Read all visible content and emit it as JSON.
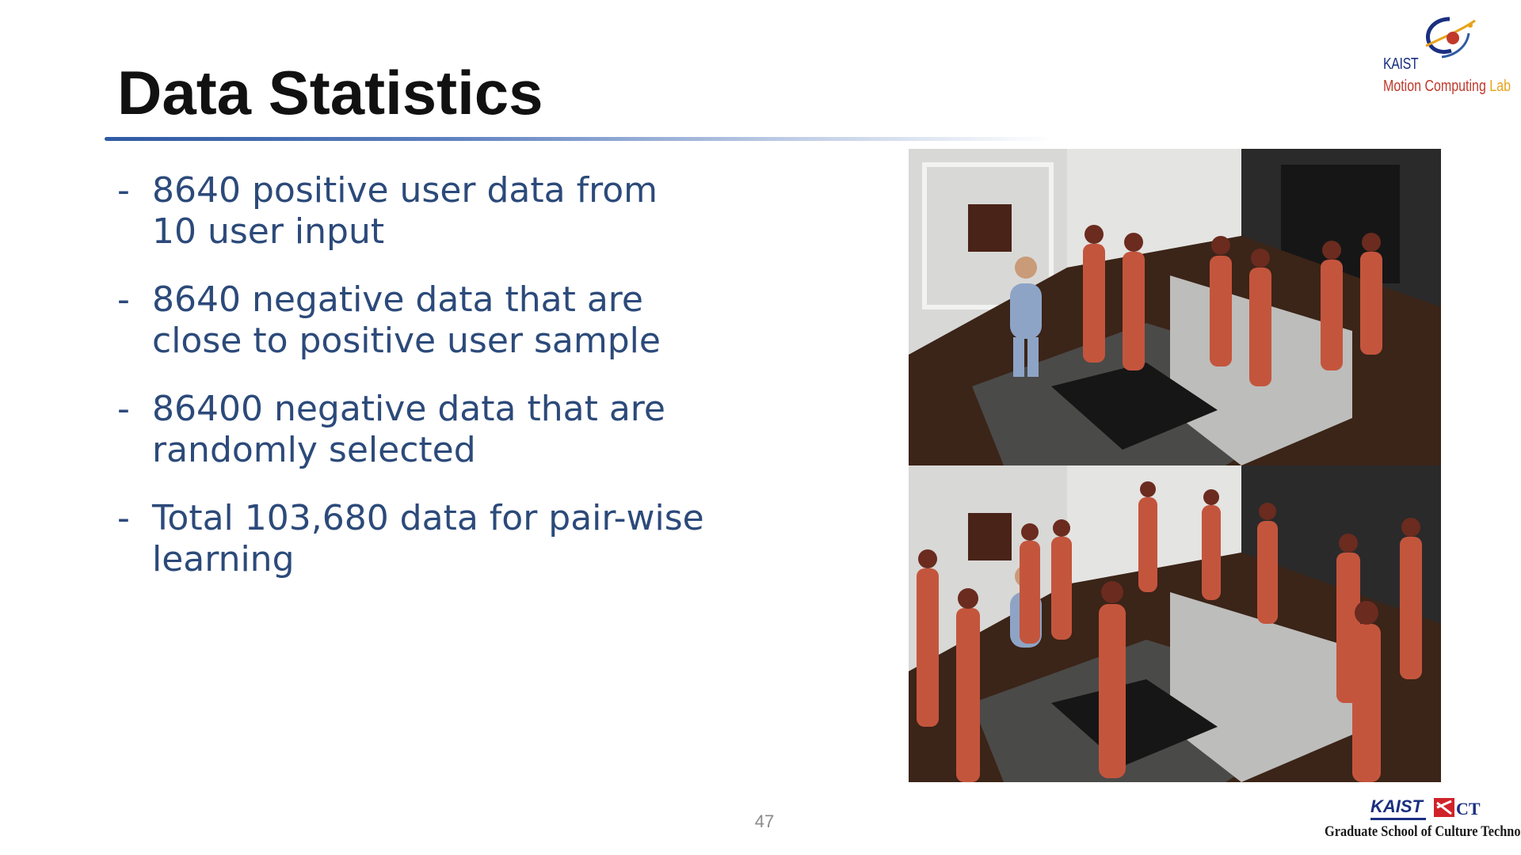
{
  "slide": {
    "title": "Data Statistics",
    "page_number": "47"
  },
  "bullets": [
    {
      "marker": "-",
      "lines": [
        "8640 positive user data from",
        "10 user input"
      ]
    },
    {
      "marker": "-",
      "lines": [
        "8640 negative data that are",
        "close to positive user sample"
      ]
    },
    {
      "marker": "-",
      "lines": [
        "86400 negative data that are",
        "randomly selected"
      ]
    },
    {
      "marker": "-",
      "lines": [
        "Total 103,680 data for pair-wise",
        "learning"
      ]
    }
  ],
  "logos": {
    "lab": {
      "kaist": "KAIST",
      "motion": "Motion Computing",
      "lab": "Lab",
      "icon": "orbit-logo-icon"
    },
    "school": {
      "kaist": "KAIST",
      "ct": "CT",
      "name": "Graduate School of Culture Technology",
      "icon": "ct-logo-icon"
    }
  },
  "colors": {
    "title": "#111111",
    "bullet_text": "#2c4a7a",
    "rule": "#2f5aa3",
    "kaist_blue": "#1a2f80",
    "motion_red": "#c0392b",
    "lab_orange": "#e8a21a"
  },
  "image": {
    "panels": [
      "top-scene",
      "bottom-scene"
    ],
    "content": "3d-living-room-with-characters"
  }
}
